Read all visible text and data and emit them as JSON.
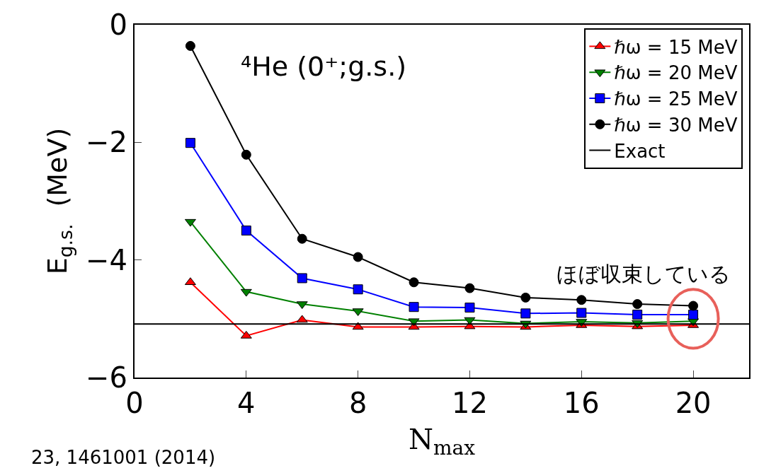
{
  "chart_data": {
    "type": "line",
    "xlabel": "N$_{max}$",
    "ylabel": "E$_{g.s.}$  (MeV)",
    "x": [
      2,
      4,
      6,
      8,
      10,
      12,
      14,
      16,
      18,
      20
    ],
    "series": [
      {
        "name": "ℏω = 15 MeV",
        "color": "#ff0000",
        "marker": "triangle-up",
        "values": [
          -4.38,
          -5.29,
          -5.02,
          -5.14,
          -5.14,
          -5.13,
          -5.14,
          -5.11,
          -5.13,
          -5.11
        ]
      },
      {
        "name": "ℏω = 20 MeV",
        "color": "#008000",
        "marker": "triangle-down",
        "values": [
          -3.35,
          -4.54,
          -4.75,
          -4.87,
          -5.04,
          -5.02,
          -5.08,
          -5.05,
          -5.07,
          -5.04
        ]
      },
      {
        "name": "ℏω = 25 MeV",
        "color": "#0000ff",
        "marker": "square",
        "values": [
          -2.01,
          -3.5,
          -4.31,
          -4.5,
          -4.8,
          -4.81,
          -4.91,
          -4.9,
          -4.93,
          -4.93
        ]
      },
      {
        "name": "ℏω = 30 MeV",
        "color": "#000000",
        "marker": "circle",
        "values": [
          -0.36,
          -2.21,
          -3.64,
          -3.95,
          -4.38,
          -4.48,
          -4.64,
          -4.68,
          -4.75,
          -4.78
        ]
      }
    ],
    "ref_lines": [
      {
        "axis": "y",
        "value": -5.09,
        "label": "Exact",
        "color": "#000000"
      }
    ],
    "xlim": [
      0,
      22
    ],
    "ylim": [
      -6,
      0
    ],
    "xticks": [
      0,
      4,
      8,
      12,
      16,
      20
    ],
    "yticks": [
      0,
      -2,
      -4,
      -6
    ],
    "legend": "top right",
    "annotations": [
      "⁴He (0⁺;g.s.)",
      {
        "text": "ほぼ収束している",
        "x": 20,
        "y": -4.95
      },
      "23, 1461001 (2014)"
    ]
  }
}
